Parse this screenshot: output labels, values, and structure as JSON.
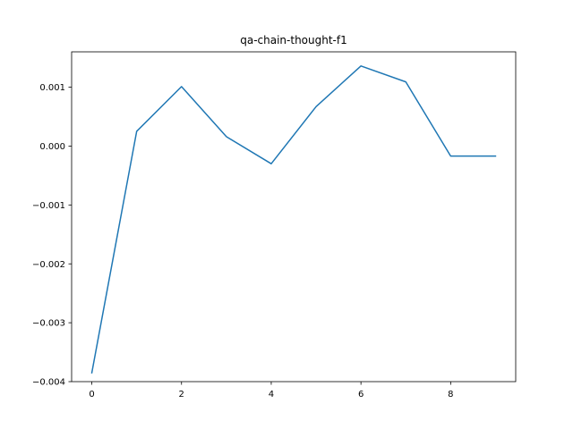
{
  "chart_data": {
    "type": "line",
    "title": "qa-chain-thought-f1",
    "xlabel": "",
    "ylabel": "",
    "x": [
      0,
      1,
      2,
      3,
      4,
      5,
      6,
      7,
      8,
      9
    ],
    "series": [
      {
        "values": [
          -0.00385,
          0.00025,
          0.00101,
          0.00016,
          -0.0003,
          0.00067,
          0.00136,
          0.00109,
          -0.00017,
          -0.00017
        ],
        "color": "#1f77b4"
      }
    ],
    "xlim": [
      -0.45,
      9.45
    ],
    "ylim": [
      -0.004,
      0.0016
    ],
    "xticks": [
      0,
      2,
      4,
      6,
      8
    ],
    "xtick_labels": [
      "0",
      "2",
      "4",
      "6",
      "8"
    ],
    "yticks": [
      0.001,
      0.0,
      -0.001,
      -0.002,
      -0.003,
      -0.004
    ],
    "ytick_labels": [
      "0.001",
      "0.000",
      "−0.001",
      "−0.002",
      "−0.003",
      "−0.004"
    ],
    "grid": false,
    "legend": "none"
  }
}
